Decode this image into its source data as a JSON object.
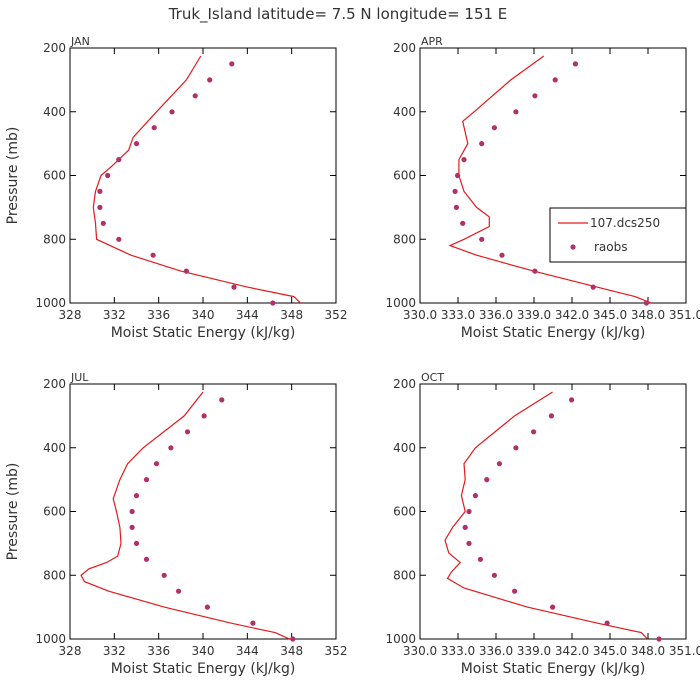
{
  "figure": {
    "title": "Truk_Island  latitude= 7.5 N longitude= 151 E"
  },
  "colors": {
    "model": "#e31a1c",
    "obs": "#b0306a",
    "axis": "#000000",
    "text": "#333333"
  },
  "chart_data": [
    {
      "type": "line",
      "panel": "JAN",
      "xlabel": "Moist Static Energy (kJ/kg)",
      "ylabel": "Pressure (mb)",
      "xlim": [
        328,
        352
      ],
      "ylim": [
        1000,
        200
      ],
      "xticks": [
        328,
        332,
        336,
        340,
        344,
        348,
        352
      ],
      "xtick_labels": [
        "328",
        "332",
        "336",
        "340",
        "344",
        "348",
        "352"
      ],
      "yticks": [
        200,
        400,
        600,
        800,
        1000
      ],
      "ytick_labels": [
        "200",
        "400",
        "600",
        "800",
        "1000"
      ],
      "series": [
        {
          "name": "107.dcs250",
          "kind": "line",
          "pressure": [
            225,
            300,
            400,
            480,
            520,
            570,
            600,
            650,
            700,
            750,
            800,
            850,
            900,
            950,
            980,
            1000
          ],
          "mse": [
            339.8,
            338.5,
            335.8,
            333.7,
            333.3,
            331.8,
            330.8,
            330.3,
            330.1,
            330.3,
            330.4,
            333.5,
            338.0,
            344.0,
            348.2,
            348.8
          ]
        },
        {
          "name": "raobs",
          "kind": "scatter",
          "pressure": [
            250,
            300,
            350,
            400,
            450,
            500,
            550,
            600,
            650,
            700,
            750,
            800,
            850,
            900,
            950,
            1000
          ],
          "mse": [
            342.6,
            340.6,
            339.3,
            337.2,
            335.6,
            334.0,
            332.4,
            331.4,
            330.7,
            330.7,
            331.0,
            332.4,
            335.5,
            338.5,
            342.8,
            346.3
          ]
        }
      ]
    },
    {
      "type": "line",
      "panel": "APR",
      "xlabel": "Moist Static Energy (kJ/kg)",
      "ylabel": "",
      "xlim": [
        330.03,
        351.03
      ],
      "ylim": [
        1000,
        200
      ],
      "xticks": [
        330.03,
        333.03,
        336.03,
        339.03,
        342.03,
        345.03,
        348.03,
        351.03
      ],
      "xtick_labels": [
        "330.0",
        "333.0",
        "336.0",
        "339.0",
        "342.0",
        "345.0",
        "348.0",
        "351.0"
      ],
      "yticks": [
        200,
        400,
        600,
        800,
        1000
      ],
      "ytick_labels": [
        "200",
        "400",
        "600",
        "800",
        "1000"
      ],
      "legend": {
        "position": "right",
        "entries": [
          "107.dcs250",
          "raobs"
        ]
      },
      "series": [
        {
          "name": "107.dcs250",
          "kind": "line",
          "pressure": [
            225,
            300,
            400,
            430,
            500,
            550,
            600,
            650,
            700,
            730,
            760,
            800,
            820,
            850,
            900,
            950,
            980,
            1000
          ],
          "mse": [
            339.8,
            337.2,
            334.3,
            333.4,
            333.8,
            333.1,
            333.1,
            333.5,
            334.5,
            335.5,
            335.5,
            333.5,
            332.4,
            334.5,
            339.0,
            344.0,
            347.0,
            348.3
          ]
        },
        {
          "name": "raobs",
          "kind": "scatter",
          "pressure": [
            250,
            300,
            350,
            400,
            450,
            500,
            550,
            600,
            650,
            700,
            750,
            800,
            850,
            900,
            950,
            1000
          ],
          "mse": [
            342.3,
            340.7,
            339.1,
            337.6,
            335.9,
            334.9,
            333.5,
            333.0,
            332.8,
            332.9,
            333.4,
            334.9,
            336.5,
            339.1,
            343.7,
            347.9
          ]
        }
      ]
    },
    {
      "type": "line",
      "panel": "JUL",
      "xlabel": "Moist Static Energy (kJ/kg)",
      "ylabel": "Pressure (mb)",
      "xlim": [
        328,
        352
      ],
      "ylim": [
        1000,
        200
      ],
      "xticks": [
        328,
        332,
        336,
        340,
        344,
        348,
        352
      ],
      "xtick_labels": [
        "328",
        "332",
        "336",
        "340",
        "344",
        "348",
        "352"
      ],
      "yticks": [
        200,
        400,
        600,
        800,
        1000
      ],
      "ytick_labels": [
        "200",
        "400",
        "600",
        "800",
        "1000"
      ],
      "series": [
        {
          "name": "107.dcs250",
          "kind": "line",
          "pressure": [
            225,
            300,
            400,
            450,
            500,
            560,
            600,
            650,
            700,
            740,
            760,
            780,
            800,
            820,
            850,
            900,
            950,
            980,
            1000
          ],
          "mse": [
            340.0,
            338.3,
            334.6,
            333.2,
            332.5,
            331.9,
            332.2,
            332.5,
            332.6,
            332.3,
            331.3,
            329.7,
            329.0,
            329.3,
            331.5,
            336.5,
            342.5,
            346.5,
            347.8
          ]
        },
        {
          "name": "raobs",
          "kind": "scatter",
          "pressure": [
            250,
            300,
            350,
            400,
            450,
            500,
            550,
            600,
            650,
            700,
            750,
            800,
            850,
            900,
            950,
            1000
          ],
          "mse": [
            341.7,
            340.1,
            338.6,
            337.1,
            335.8,
            334.9,
            334.0,
            333.6,
            333.6,
            334.0,
            334.9,
            336.5,
            337.8,
            340.4,
            344.5,
            348.1
          ]
        }
      ]
    },
    {
      "type": "line",
      "panel": "OCT",
      "xlabel": "Moist Static Energy (kJ/kg)",
      "ylabel": "",
      "xlim": [
        330.03,
        351.03
      ],
      "ylim": [
        1000,
        200
      ],
      "xticks": [
        330.03,
        333.03,
        336.03,
        339.03,
        342.03,
        345.03,
        348.03,
        351.03
      ],
      "xtick_labels": [
        "330.0",
        "333.0",
        "336.0",
        "339.0",
        "342.0",
        "345.0",
        "348.0",
        "351.0"
      ],
      "yticks": [
        200,
        400,
        600,
        800,
        1000
      ],
      "ytick_labels": [
        "200",
        "400",
        "600",
        "800",
        "1000"
      ],
      "series": [
        {
          "name": "107.dcs250",
          "kind": "line",
          "pressure": [
            225,
            300,
            400,
            450,
            500,
            550,
            600,
            650,
            690,
            730,
            760,
            790,
            810,
            840,
            900,
            950,
            980,
            1000
          ],
          "mse": [
            340.5,
            337.5,
            334.4,
            333.5,
            333.6,
            333.3,
            333.6,
            332.6,
            332.0,
            332.3,
            333.2,
            332.5,
            332.2,
            333.5,
            338.5,
            344.0,
            347.5,
            348.0
          ]
        },
        {
          "name": "raobs",
          "kind": "scatter",
          "pressure": [
            250,
            300,
            350,
            400,
            450,
            500,
            550,
            600,
            650,
            700,
            750,
            800,
            850,
            900,
            950,
            1000
          ],
          "mse": [
            342.0,
            340.4,
            339.0,
            337.6,
            336.3,
            335.3,
            334.4,
            333.9,
            333.6,
            333.9,
            334.8,
            335.9,
            337.5,
            340.5,
            344.8,
            348.9
          ]
        }
      ]
    }
  ]
}
